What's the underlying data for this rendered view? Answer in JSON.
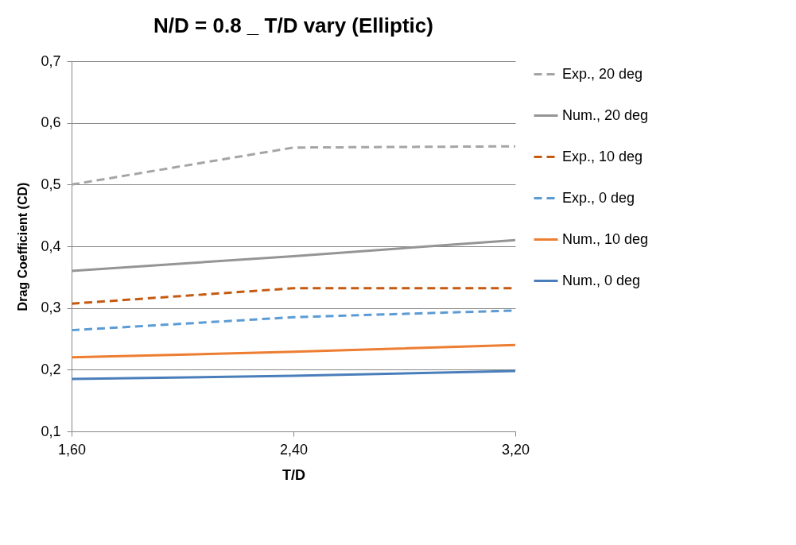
{
  "chart_data": {
    "type": "line",
    "title": "N/D = 0.8 _ T/D vary (Elliptic)",
    "xlabel": "T/D",
    "ylabel": "Drag Coefficient (CD)",
    "categories": [
      "1,60",
      "2,40",
      "3,20"
    ],
    "series": [
      {
        "name": "Exp., 20 deg",
        "color": "#a5a5a5",
        "line_style": "dashed",
        "values": [
          0.5,
          0.56,
          0.562
        ]
      },
      {
        "name": "Num., 20 deg",
        "color": "#959595",
        "line_style": "solid",
        "values": [
          0.36,
          0.384,
          0.41
        ]
      },
      {
        "name": "Exp., 10 deg",
        "color": "#c55a11",
        "line_style": "dashed",
        "values": [
          0.307,
          0.332,
          0.332
        ]
      },
      {
        "name": "Exp., 0 deg",
        "color": "#5b9bd5",
        "line_style": "dashed",
        "values": [
          0.264,
          0.285,
          0.296
        ]
      },
      {
        "name": "Num., 10 deg",
        "color": "#ed7d31",
        "line_style": "solid",
        "values": [
          0.22,
          0.229,
          0.24
        ]
      },
      {
        "name": "Num., 0 deg",
        "color": "#4a7ebb",
        "line_style": "solid",
        "values": [
          0.185,
          0.19,
          0.198
        ]
      }
    ],
    "ylim": [
      0.1,
      0.7
    ],
    "yticks": [
      {
        "value": 0.1,
        "label": "0,1"
      },
      {
        "value": 0.2,
        "label": "0,2"
      },
      {
        "value": 0.3,
        "label": "0,3"
      },
      {
        "value": 0.4,
        "label": "0,4"
      },
      {
        "value": 0.5,
        "label": "0,5"
      },
      {
        "value": 0.6,
        "label": "0,6"
      },
      {
        "value": 0.7,
        "label": "0,7"
      }
    ],
    "grid": "y",
    "legend": "right",
    "marker": "none"
  }
}
